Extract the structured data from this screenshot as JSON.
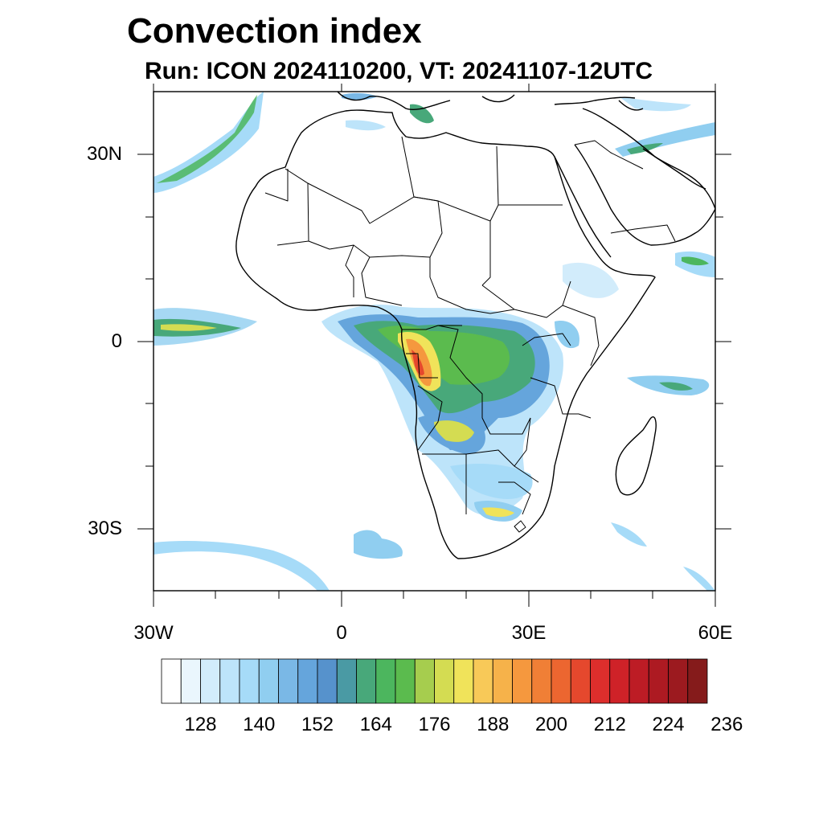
{
  "title": "Convection index",
  "subtitle": "Run: ICON 2024110200,  VT: 20241107-12UTC",
  "axes": {
    "lat_labels": [
      "30N",
      "0",
      "30S"
    ],
    "lon_labels": [
      "30W",
      "0",
      "30E",
      "60E"
    ]
  },
  "colorbar": {
    "labels": [
      "128",
      "140",
      "152",
      "164",
      "176",
      "188",
      "200",
      "212",
      "224",
      "236"
    ],
    "colors": [
      "#ffffff",
      "#eaf6fd",
      "#d2ecfb",
      "#bde4fa",
      "#a6dbf8",
      "#90cef0",
      "#7ab8e6",
      "#65a5dc",
      "#5692cc",
      "#4a9aa4",
      "#48a87a",
      "#4cb65e",
      "#5bbb4e",
      "#a6cd4e",
      "#d4dc52",
      "#f0e35a",
      "#f8c958",
      "#f6b24a",
      "#f5983e",
      "#f07f36",
      "#ec6630",
      "#e5482d",
      "#dd2e2c",
      "#cf2228",
      "#bd1c25",
      "#ad1a22",
      "#9c1a1f",
      "#851b1b"
    ]
  }
}
